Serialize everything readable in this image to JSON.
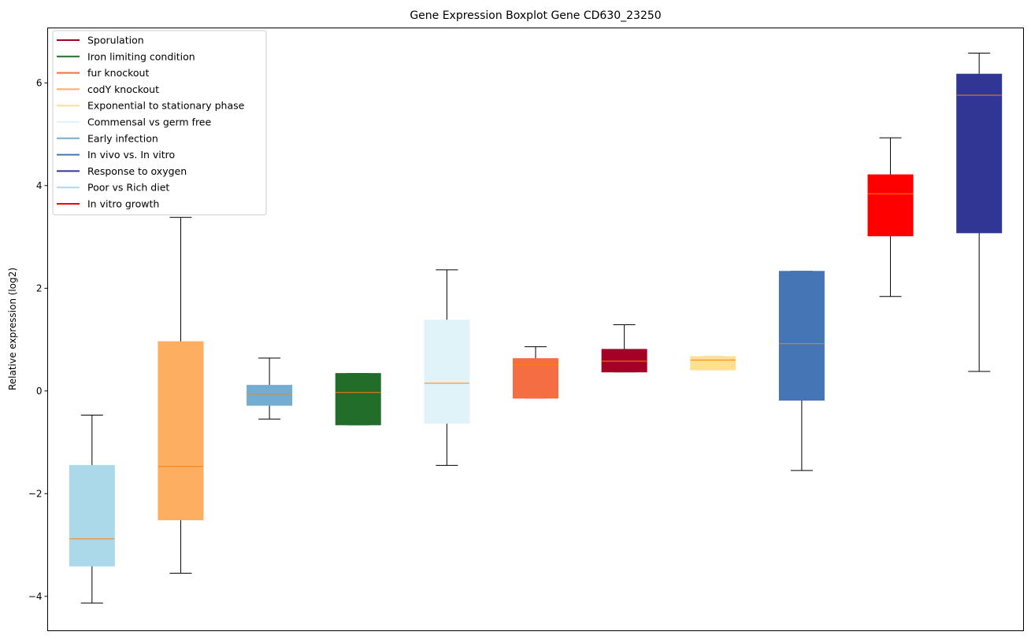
{
  "chart_data": {
    "type": "box",
    "title": "Gene Expression Boxplot Gene CD630_23250",
    "xlabel": "",
    "ylabel": "Relative expression (log2)",
    "ylim": [
      -4.67,
      7.07
    ],
    "yticks": [
      -4,
      -2,
      0,
      2,
      4,
      6
    ],
    "ytick_labels": [
      "−4",
      "−2",
      "0",
      "2",
      "4",
      "6"
    ],
    "grid": false,
    "legend_position": "top-left",
    "median_color": "#ff7f0e",
    "boxes": [
      {
        "name": "Poor vs Rich diet",
        "color": "#abd9e9",
        "whislo": -4.13,
        "q1": -3.41,
        "med": -2.88,
        "q3": -1.45,
        "whishi": -0.47
      },
      {
        "name": "codY knockout",
        "color": "#fdae61",
        "whislo": -3.55,
        "q1": -2.51,
        "med": -1.47,
        "q3": 0.96,
        "whishi": 3.38
      },
      {
        "name": "Early infection",
        "color": "#74add1",
        "whislo": -0.55,
        "q1": -0.28,
        "med": -0.06,
        "q3": 0.11,
        "whishi": 0.64
      },
      {
        "name": "Iron limiting condition",
        "color": "#236d2b",
        "whislo": -0.66,
        "q1": -0.66,
        "med": -0.03,
        "q3": 0.34,
        "whishi": 0.34
      },
      {
        "name": "Commensal vs germ free",
        "color": "#e0f3f8",
        "whislo": -1.45,
        "q1": -0.63,
        "med": 0.15,
        "q3": 1.38,
        "whishi": 2.36
      },
      {
        "name": "fur knockout",
        "color": "#f46d43",
        "whislo": -0.14,
        "q1": -0.14,
        "med": 0.51,
        "q3": 0.63,
        "whishi": 0.86
      },
      {
        "name": "Sporulation",
        "color": "#a50026",
        "whislo": 0.37,
        "q1": 0.37,
        "med": 0.58,
        "q3": 0.81,
        "whishi": 1.29
      },
      {
        "name": "Exponential to stationary phase",
        "color": "#fee090",
        "whislo": 0.41,
        "q1": 0.41,
        "med": 0.6,
        "q3": 0.67,
        "whishi": 0.67
      },
      {
        "name": "In vivo vs. In vitro",
        "color": "#4575b4",
        "whislo": -1.55,
        "q1": -0.18,
        "med": 0.92,
        "q3": 2.33,
        "whishi": 2.33
      },
      {
        "name": "In vitro growth",
        "color": "#ff0000",
        "whislo": 1.84,
        "q1": 3.02,
        "med": 3.84,
        "q3": 4.21,
        "whishi": 4.93
      },
      {
        "name": "Response to oxygen",
        "color": "#313695",
        "whislo": 0.38,
        "q1": 3.08,
        "med": 5.76,
        "q3": 6.17,
        "whishi": 6.58
      }
    ],
    "legend": [
      {
        "label": "Sporulation",
        "color": "#a50026"
      },
      {
        "label": "Iron limiting condition",
        "color": "#236d2b"
      },
      {
        "label": "fur knockout",
        "color": "#f46d43"
      },
      {
        "label": "codY knockout",
        "color": "#fdae61"
      },
      {
        "label": "Exponential to stationary phase",
        "color": "#fee090"
      },
      {
        "label": "Commensal vs germ free",
        "color": "#e0f3f8"
      },
      {
        "label": "Early infection",
        "color": "#74add1"
      },
      {
        "label": "In vivo vs. In vitro",
        "color": "#4575b4"
      },
      {
        "label": "Response to oxygen",
        "color": "#313695"
      },
      {
        "label": "Poor vs Rich diet",
        "color": "#abd9e9"
      },
      {
        "label": "In vitro growth",
        "color": "#ff0000"
      }
    ]
  }
}
